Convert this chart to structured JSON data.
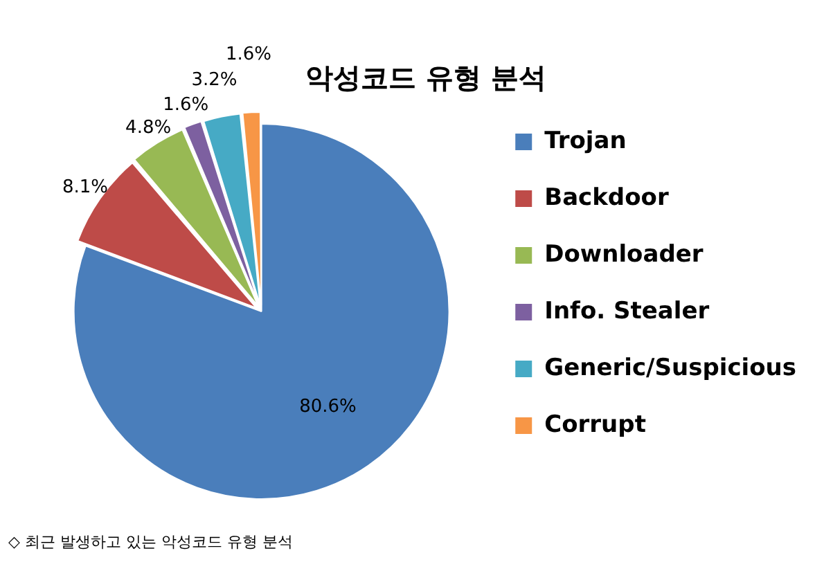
{
  "chart_data": {
    "type": "pie",
    "title": "악성코드 유형 분석",
    "categories": [
      "Trojan",
      "Backdoor",
      "Downloader",
      "Info. Stealer",
      "Generic/Suspicious",
      "Corrupt"
    ],
    "values": [
      80.6,
      8.1,
      4.8,
      1.6,
      3.2,
      1.6
    ],
    "value_labels": [
      "80.6%",
      "8.1%",
      "4.8%",
      "1.6%",
      "3.2%",
      "1.6%"
    ],
    "colors": [
      "#4a7ebb",
      "#be4b48",
      "#98b954",
      "#7d60a0",
      "#46aac5",
      "#f79646"
    ],
    "legend": "right",
    "annotations": [
      "◇ 최근 발생하고 있는 악성코드 유형 분석"
    ]
  }
}
